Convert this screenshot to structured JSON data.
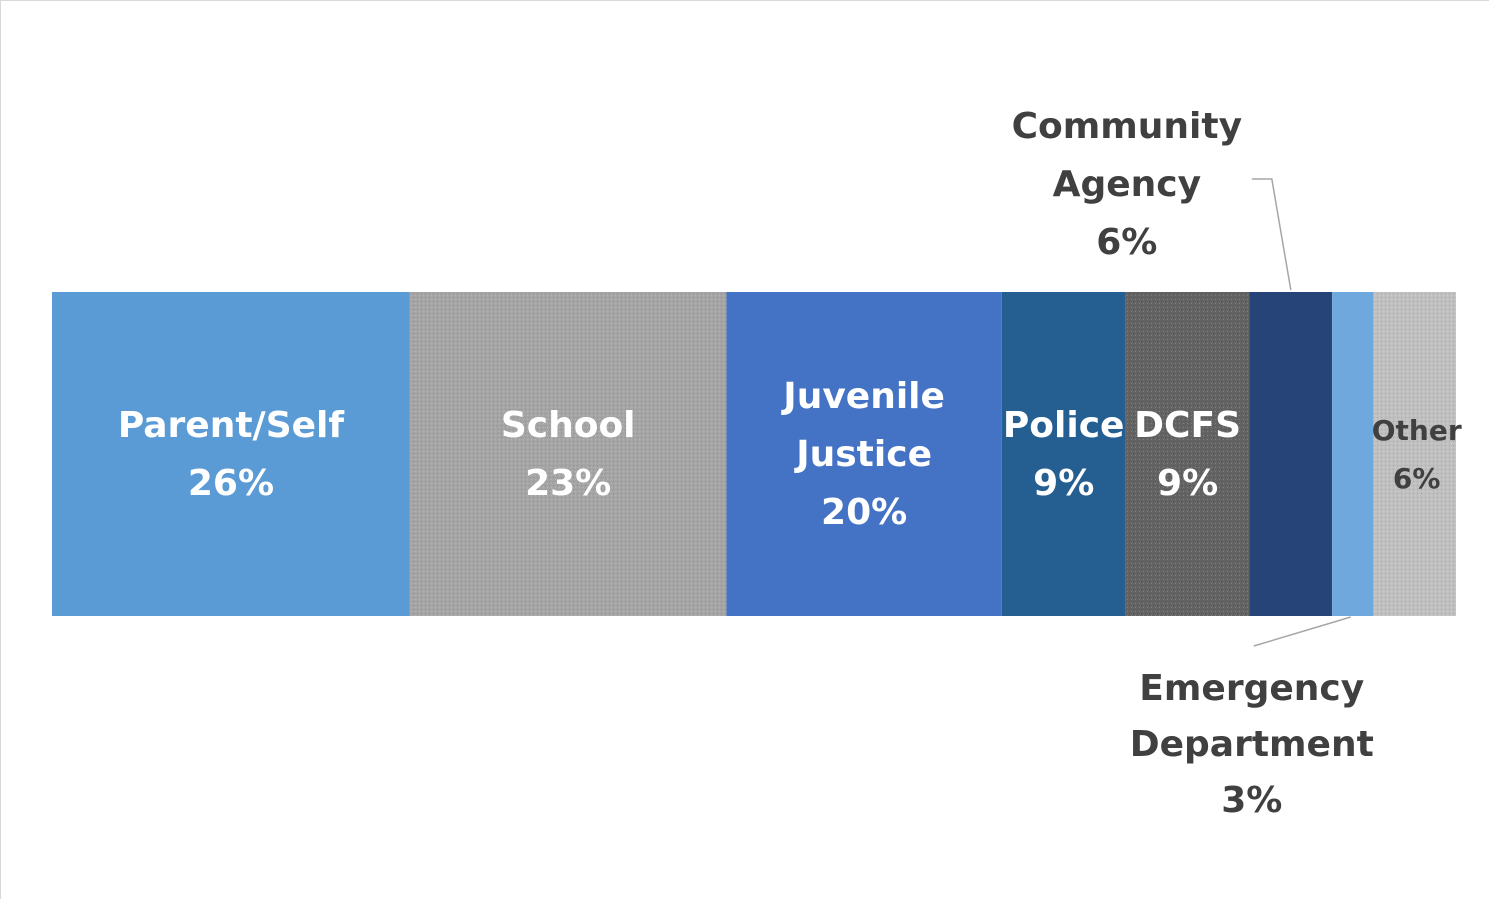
{
  "chart_data": {
    "type": "bar",
    "orientation": "horizontal-stacked-100",
    "grid": false,
    "legend": "none",
    "series": [
      {
        "name": "Parent/Self",
        "value": 26,
        "label_lines": [
          "Parent/Self",
          "26%"
        ],
        "color": "#5b9bd5",
        "pattern": false,
        "label_color": "#ffffff",
        "label_position": "inside"
      },
      {
        "name": "School",
        "value": 23,
        "label_lines": [
          "School",
          "23%"
        ],
        "color": "#a5a5a5",
        "pattern": true,
        "label_color": "#ffffff",
        "label_position": "inside"
      },
      {
        "name": "Juvenile Justice",
        "value": 20,
        "label_lines": [
          "Juvenile",
          "Justice",
          "20%"
        ],
        "color": "#4472c4",
        "pattern": false,
        "label_color": "#ffffff",
        "label_position": "inside"
      },
      {
        "name": "Police",
        "value": 9,
        "label_lines": [
          "Police",
          "9%"
        ],
        "color": "#255e91",
        "pattern": false,
        "label_color": "#ffffff",
        "label_position": "inside"
      },
      {
        "name": "DCFS",
        "value": 9,
        "label_lines": [
          "DCFS",
          "9%"
        ],
        "color": "#636363",
        "pattern": true,
        "label_color": "#ffffff",
        "label_position": "inside"
      },
      {
        "name": "Community Agency",
        "value": 6,
        "label_lines": [
          "Community",
          "Agency",
          "6%"
        ],
        "color": "#264478",
        "pattern": false,
        "label_color": "#404040",
        "label_position": "above"
      },
      {
        "name": "Emergency Department",
        "value": 3,
        "label_lines": [
          "Emergency",
          "Department",
          "3%"
        ],
        "color": "#6fa8dc",
        "pattern": false,
        "label_color": "#404040",
        "label_position": "below"
      },
      {
        "name": "Other",
        "value": 6,
        "label_lines": [
          "Other",
          "6%"
        ],
        "color": "#c0c0c0",
        "pattern": true,
        "label_color": "#404040",
        "label_position": "inside-small"
      }
    ]
  }
}
